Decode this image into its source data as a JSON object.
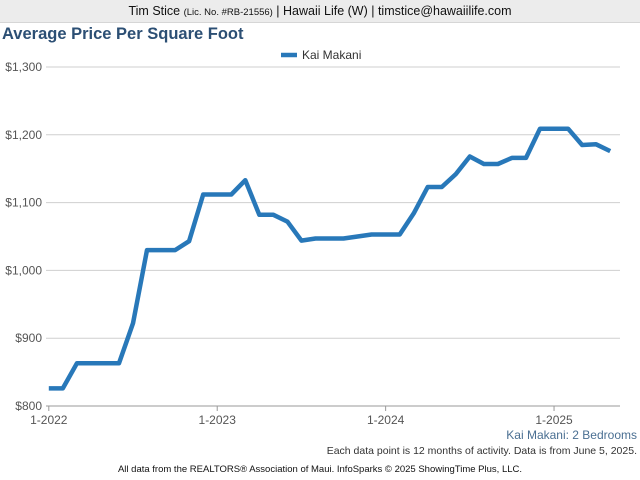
{
  "header": {
    "agent": "Tim Stice",
    "license": "(Lic. No. #RB-21556)",
    "rest": " | Hawaii Life (W) | timstice@hawaiilife.com"
  },
  "chart_data": {
    "type": "line",
    "title": "Average Price Per Square Foot",
    "subtitle": "Kai Makani: 2 Bedrooms",
    "note": "Each data point is 12 months of activity. Data is from June 5, 2025.",
    "footer": "All data from the REALTORS® Association of Maui. InfoSparks © 2025 ShowingTime Plus, LLC.",
    "legend": {
      "position": "top-center"
    },
    "grid": true,
    "color": "#2878b9",
    "xlim": [
      "2022-01",
      "2025-05"
    ],
    "ylim": [
      800,
      1300
    ],
    "y_ticks": [
      {
        "value": 800,
        "label": "$800"
      },
      {
        "value": 900,
        "label": "$900"
      },
      {
        "value": 1000,
        "label": "$1,000"
      },
      {
        "value": 1100,
        "label": "$1,100"
      },
      {
        "value": 1200,
        "label": "$1,200"
      },
      {
        "value": 1300,
        "label": "$1,300"
      }
    ],
    "x_ticks": [
      {
        "value": "2022-01",
        "label": "1-2022"
      },
      {
        "value": "2023-01",
        "label": "1-2023"
      },
      {
        "value": "2024-01",
        "label": "1-2024"
      },
      {
        "value": "2025-01",
        "label": "1-2025"
      }
    ],
    "series": [
      {
        "name": "Kai Makani",
        "points": [
          [
            "2022-01",
            826
          ],
          [
            "2022-02",
            826
          ],
          [
            "2022-03",
            863
          ],
          [
            "2022-04",
            863
          ],
          [
            "2022-05",
            863
          ],
          [
            "2022-06",
            863
          ],
          [
            "2022-07",
            922
          ],
          [
            "2022-08",
            1030
          ],
          [
            "2022-09",
            1030
          ],
          [
            "2022-10",
            1030
          ],
          [
            "2022-11",
            1043
          ],
          [
            "2022-12",
            1112
          ],
          [
            "2023-01",
            1112
          ],
          [
            "2023-02",
            1112
          ],
          [
            "2023-03",
            1133
          ],
          [
            "2023-04",
            1082
          ],
          [
            "2023-05",
            1082
          ],
          [
            "2023-06",
            1072
          ],
          [
            "2023-07",
            1044
          ],
          [
            "2023-08",
            1047
          ],
          [
            "2023-09",
            1047
          ],
          [
            "2023-10",
            1047
          ],
          [
            "2023-11",
            1050
          ],
          [
            "2023-12",
            1053
          ],
          [
            "2024-01",
            1053
          ],
          [
            "2024-02",
            1053
          ],
          [
            "2024-03",
            1084
          ],
          [
            "2024-04",
            1123
          ],
          [
            "2024-05",
            1123
          ],
          [
            "2024-06",
            1142
          ],
          [
            "2024-07",
            1168
          ],
          [
            "2024-08",
            1157
          ],
          [
            "2024-09",
            1157
          ],
          [
            "2024-10",
            1166
          ],
          [
            "2024-11",
            1166
          ],
          [
            "2024-12",
            1209
          ],
          [
            "2025-01",
            1209
          ],
          [
            "2025-02",
            1209
          ],
          [
            "2025-03",
            1185
          ],
          [
            "2025-04",
            1186
          ],
          [
            "2025-05",
            1176
          ]
        ]
      }
    ]
  }
}
